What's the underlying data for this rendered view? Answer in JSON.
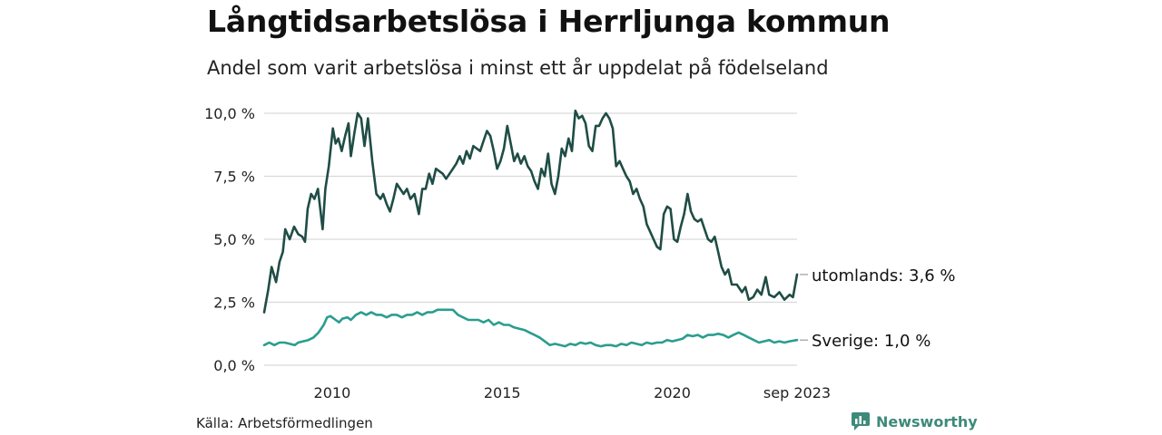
{
  "header": {
    "title": "Långtidsarbetslösa i Herrljunga kommun",
    "subtitle": "Andel som varit arbetslösa i minst ett år uppdelat på födelseland"
  },
  "footer": {
    "source": "Källa: Arbetsförmedlingen",
    "brand": "Newsworthy"
  },
  "colors": {
    "utomlands": "#1f4d45",
    "sverige": "#2a9d8f",
    "grid": "#d9d9d9"
  },
  "chart_data": {
    "type": "line",
    "title": "Långtidsarbetslösa i Herrljunga kommun",
    "xlabel": "",
    "ylabel": "",
    "x_start": 2008.0,
    "x_end": 2023.67,
    "ylim": [
      0,
      10
    ],
    "yticks": [
      0,
      2.5,
      5,
      7.5,
      10
    ],
    "ytick_labels": [
      "0,0 %",
      "2,5 %",
      "5,0 %",
      "7,5 %",
      "10,0 %"
    ],
    "xticks": [
      2010,
      2015,
      2020,
      2023.67
    ],
    "xtick_labels": [
      "2010",
      "2015",
      "2020",
      "sep 2023"
    ],
    "series": [
      {
        "name": "utomlands",
        "end_label": "utomlands: 3,6 %",
        "points": [
          [
            2008.0,
            2.1
          ],
          [
            2008.12,
            3.0
          ],
          [
            2008.22,
            3.9
          ],
          [
            2008.35,
            3.3
          ],
          [
            2008.45,
            4.1
          ],
          [
            2008.55,
            4.5
          ],
          [
            2008.62,
            5.4
          ],
          [
            2008.75,
            5.0
          ],
          [
            2008.88,
            5.5
          ],
          [
            2009.0,
            5.2
          ],
          [
            2009.12,
            5.1
          ],
          [
            2009.2,
            4.9
          ],
          [
            2009.28,
            6.2
          ],
          [
            2009.38,
            6.8
          ],
          [
            2009.48,
            6.6
          ],
          [
            2009.58,
            7.0
          ],
          [
            2009.72,
            5.4
          ],
          [
            2009.8,
            7.0
          ],
          [
            2009.9,
            7.9
          ],
          [
            2010.02,
            9.4
          ],
          [
            2010.1,
            8.8
          ],
          [
            2010.18,
            9.0
          ],
          [
            2010.28,
            8.5
          ],
          [
            2010.38,
            9.1
          ],
          [
            2010.48,
            9.6
          ],
          [
            2010.55,
            8.3
          ],
          [
            2010.65,
            9.2
          ],
          [
            2010.75,
            10.0
          ],
          [
            2010.85,
            9.8
          ],
          [
            2010.95,
            8.7
          ],
          [
            2011.05,
            9.8
          ],
          [
            2011.18,
            8.1
          ],
          [
            2011.3,
            6.8
          ],
          [
            2011.42,
            6.6
          ],
          [
            2011.5,
            6.8
          ],
          [
            2011.6,
            6.4
          ],
          [
            2011.7,
            6.1
          ],
          [
            2011.8,
            6.6
          ],
          [
            2011.9,
            7.2
          ],
          [
            2012.0,
            7.0
          ],
          [
            2012.1,
            6.8
          ],
          [
            2012.2,
            7.0
          ],
          [
            2012.3,
            6.6
          ],
          [
            2012.42,
            6.8
          ],
          [
            2012.55,
            6.0
          ],
          [
            2012.65,
            7.0
          ],
          [
            2012.75,
            7.0
          ],
          [
            2012.85,
            7.6
          ],
          [
            2012.95,
            7.2
          ],
          [
            2013.05,
            7.8
          ],
          [
            2013.15,
            7.7
          ],
          [
            2013.25,
            7.6
          ],
          [
            2013.35,
            7.4
          ],
          [
            2013.45,
            7.6
          ],
          [
            2013.55,
            7.8
          ],
          [
            2013.65,
            8.0
          ],
          [
            2013.75,
            8.3
          ],
          [
            2013.85,
            8.0
          ],
          [
            2013.95,
            8.5
          ],
          [
            2014.05,
            8.2
          ],
          [
            2014.15,
            8.7
          ],
          [
            2014.25,
            8.6
          ],
          [
            2014.35,
            8.5
          ],
          [
            2014.45,
            8.9
          ],
          [
            2014.55,
            9.3
          ],
          [
            2014.65,
            9.1
          ],
          [
            2014.75,
            8.5
          ],
          [
            2014.85,
            7.8
          ],
          [
            2014.95,
            8.1
          ],
          [
            2015.05,
            8.6
          ],
          [
            2015.15,
            9.5
          ],
          [
            2015.25,
            8.8
          ],
          [
            2015.35,
            8.1
          ],
          [
            2015.45,
            8.4
          ],
          [
            2015.55,
            8.0
          ],
          [
            2015.65,
            8.3
          ],
          [
            2015.75,
            7.9
          ],
          [
            2015.85,
            7.7
          ],
          [
            2015.95,
            7.3
          ],
          [
            2016.05,
            7.0
          ],
          [
            2016.15,
            7.8
          ],
          [
            2016.25,
            7.5
          ],
          [
            2016.35,
            8.4
          ],
          [
            2016.45,
            7.2
          ],
          [
            2016.55,
            6.8
          ],
          [
            2016.65,
            7.5
          ],
          [
            2016.75,
            8.6
          ],
          [
            2016.85,
            8.3
          ],
          [
            2016.95,
            9.0
          ],
          [
            2017.05,
            8.5
          ],
          [
            2017.15,
            10.1
          ],
          [
            2017.25,
            9.8
          ],
          [
            2017.35,
            9.9
          ],
          [
            2017.45,
            9.6
          ],
          [
            2017.55,
            8.7
          ],
          [
            2017.65,
            8.5
          ],
          [
            2017.75,
            9.5
          ],
          [
            2017.85,
            9.5
          ],
          [
            2017.95,
            9.8
          ],
          [
            2018.05,
            10.0
          ],
          [
            2018.15,
            9.8
          ],
          [
            2018.25,
            9.4
          ],
          [
            2018.35,
            7.9
          ],
          [
            2018.45,
            8.1
          ],
          [
            2018.55,
            7.8
          ],
          [
            2018.65,
            7.5
          ],
          [
            2018.75,
            7.3
          ],
          [
            2018.85,
            6.8
          ],
          [
            2018.95,
            7.0
          ],
          [
            2019.05,
            6.6
          ],
          [
            2019.15,
            6.3
          ],
          [
            2019.25,
            5.6
          ],
          [
            2019.35,
            5.3
          ],
          [
            2019.45,
            5.0
          ],
          [
            2019.55,
            4.7
          ],
          [
            2019.65,
            4.6
          ],
          [
            2019.75,
            6.0
          ],
          [
            2019.85,
            6.3
          ],
          [
            2019.95,
            6.2
          ],
          [
            2020.05,
            5.0
          ],
          [
            2020.15,
            4.9
          ],
          [
            2020.25,
            5.5
          ],
          [
            2020.35,
            6.0
          ],
          [
            2020.45,
            6.8
          ],
          [
            2020.55,
            6.1
          ],
          [
            2020.65,
            5.8
          ],
          [
            2020.75,
            5.7
          ],
          [
            2020.85,
            5.8
          ],
          [
            2020.95,
            5.4
          ],
          [
            2021.05,
            5.0
          ],
          [
            2021.15,
            4.9
          ],
          [
            2021.25,
            5.1
          ],
          [
            2021.35,
            4.5
          ],
          [
            2021.45,
            3.9
          ],
          [
            2021.55,
            3.6
          ],
          [
            2021.65,
            3.8
          ],
          [
            2021.75,
            3.2
          ],
          [
            2021.9,
            3.2
          ],
          [
            2022.05,
            2.9
          ],
          [
            2022.15,
            3.1
          ],
          [
            2022.25,
            2.6
          ],
          [
            2022.38,
            2.7
          ],
          [
            2022.5,
            3.0
          ],
          [
            2022.62,
            2.8
          ],
          [
            2022.75,
            3.5
          ],
          [
            2022.85,
            2.8
          ],
          [
            2023.0,
            2.7
          ],
          [
            2023.15,
            2.9
          ],
          [
            2023.3,
            2.6
          ],
          [
            2023.45,
            2.8
          ],
          [
            2023.55,
            2.7
          ],
          [
            2023.67,
            3.6
          ]
        ]
      },
      {
        "name": "Sverige",
        "end_label": "Sverige: 1,0 %",
        "points": [
          [
            2008.0,
            0.8
          ],
          [
            2008.15,
            0.9
          ],
          [
            2008.3,
            0.8
          ],
          [
            2008.45,
            0.9
          ],
          [
            2008.6,
            0.9
          ],
          [
            2008.75,
            0.85
          ],
          [
            2008.9,
            0.8
          ],
          [
            2009.0,
            0.9
          ],
          [
            2009.15,
            0.95
          ],
          [
            2009.3,
            1.0
          ],
          [
            2009.45,
            1.1
          ],
          [
            2009.6,
            1.3
          ],
          [
            2009.75,
            1.6
          ],
          [
            2009.85,
            1.9
          ],
          [
            2009.95,
            1.95
          ],
          [
            2010.1,
            1.8
          ],
          [
            2010.2,
            1.7
          ],
          [
            2010.3,
            1.85
          ],
          [
            2010.45,
            1.9
          ],
          [
            2010.55,
            1.8
          ],
          [
            2010.7,
            2.0
          ],
          [
            2010.85,
            2.1
          ],
          [
            2011.0,
            2.0
          ],
          [
            2011.15,
            2.1
          ],
          [
            2011.3,
            2.0
          ],
          [
            2011.45,
            2.0
          ],
          [
            2011.6,
            1.9
          ],
          [
            2011.75,
            2.0
          ],
          [
            2011.9,
            2.0
          ],
          [
            2012.05,
            1.9
          ],
          [
            2012.2,
            2.0
          ],
          [
            2012.35,
            2.0
          ],
          [
            2012.5,
            2.1
          ],
          [
            2012.65,
            2.0
          ],
          [
            2012.8,
            2.1
          ],
          [
            2012.95,
            2.1
          ],
          [
            2013.1,
            2.2
          ],
          [
            2013.25,
            2.2
          ],
          [
            2013.4,
            2.2
          ],
          [
            2013.55,
            2.2
          ],
          [
            2013.7,
            2.0
          ],
          [
            2013.85,
            1.9
          ],
          [
            2014.0,
            1.8
          ],
          [
            2014.15,
            1.8
          ],
          [
            2014.3,
            1.8
          ],
          [
            2014.45,
            1.7
          ],
          [
            2014.6,
            1.8
          ],
          [
            2014.75,
            1.6
          ],
          [
            2014.9,
            1.7
          ],
          [
            2015.05,
            1.6
          ],
          [
            2015.2,
            1.6
          ],
          [
            2015.35,
            1.5
          ],
          [
            2015.5,
            1.45
          ],
          [
            2015.65,
            1.4
          ],
          [
            2015.8,
            1.3
          ],
          [
            2015.95,
            1.2
          ],
          [
            2016.1,
            1.1
          ],
          [
            2016.25,
            0.95
          ],
          [
            2016.4,
            0.8
          ],
          [
            2016.55,
            0.85
          ],
          [
            2016.7,
            0.8
          ],
          [
            2016.85,
            0.75
          ],
          [
            2017.0,
            0.85
          ],
          [
            2017.15,
            0.8
          ],
          [
            2017.3,
            0.9
          ],
          [
            2017.45,
            0.85
          ],
          [
            2017.6,
            0.9
          ],
          [
            2017.75,
            0.8
          ],
          [
            2017.9,
            0.75
          ],
          [
            2018.05,
            0.8
          ],
          [
            2018.2,
            0.8
          ],
          [
            2018.35,
            0.75
          ],
          [
            2018.5,
            0.85
          ],
          [
            2018.65,
            0.8
          ],
          [
            2018.8,
            0.9
          ],
          [
            2018.95,
            0.85
          ],
          [
            2019.1,
            0.8
          ],
          [
            2019.25,
            0.9
          ],
          [
            2019.4,
            0.85
          ],
          [
            2019.55,
            0.9
          ],
          [
            2019.7,
            0.9
          ],
          [
            2019.85,
            1.0
          ],
          [
            2020.0,
            0.95
          ],
          [
            2020.15,
            1.0
          ],
          [
            2020.3,
            1.05
          ],
          [
            2020.45,
            1.2
          ],
          [
            2020.6,
            1.15
          ],
          [
            2020.75,
            1.2
          ],
          [
            2020.9,
            1.1
          ],
          [
            2021.05,
            1.2
          ],
          [
            2021.2,
            1.2
          ],
          [
            2021.35,
            1.25
          ],
          [
            2021.5,
            1.2
          ],
          [
            2021.65,
            1.1
          ],
          [
            2021.8,
            1.2
          ],
          [
            2021.95,
            1.3
          ],
          [
            2022.1,
            1.2
          ],
          [
            2022.25,
            1.1
          ],
          [
            2022.4,
            1.0
          ],
          [
            2022.55,
            0.9
          ],
          [
            2022.7,
            0.95
          ],
          [
            2022.85,
            1.0
          ],
          [
            2023.0,
            0.9
          ],
          [
            2023.15,
            0.95
          ],
          [
            2023.3,
            0.9
          ],
          [
            2023.45,
            0.95
          ],
          [
            2023.67,
            1.0
          ]
        ]
      }
    ]
  }
}
